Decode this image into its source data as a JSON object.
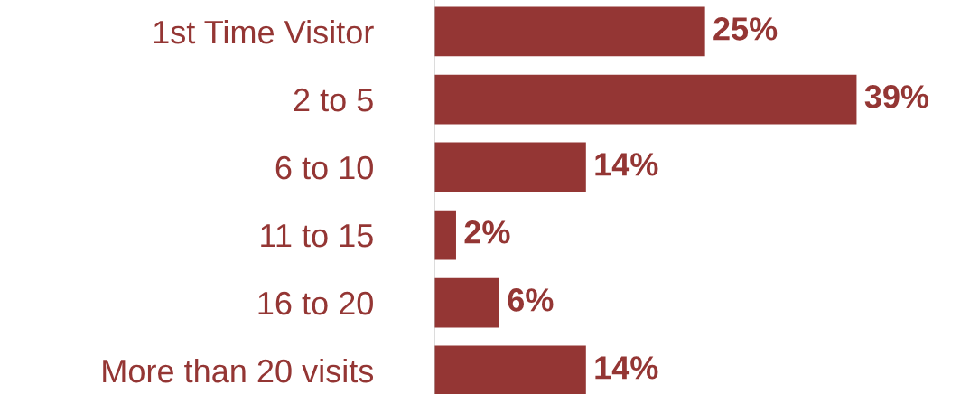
{
  "chart_data": {
    "type": "bar",
    "orientation": "horizontal",
    "categories": [
      "1st Time Visitor",
      "2 to 5",
      "6 to 10",
      "11 to 15",
      "16 to 20",
      "More than 20 visits"
    ],
    "values": [
      25,
      39,
      14,
      2,
      6,
      14
    ],
    "value_labels": [
      "25%",
      "39%",
      "14%",
      "2%",
      "6%",
      "14%"
    ],
    "color": "#943634",
    "grid": false,
    "legend": false,
    "tick_labels": "y"
  }
}
